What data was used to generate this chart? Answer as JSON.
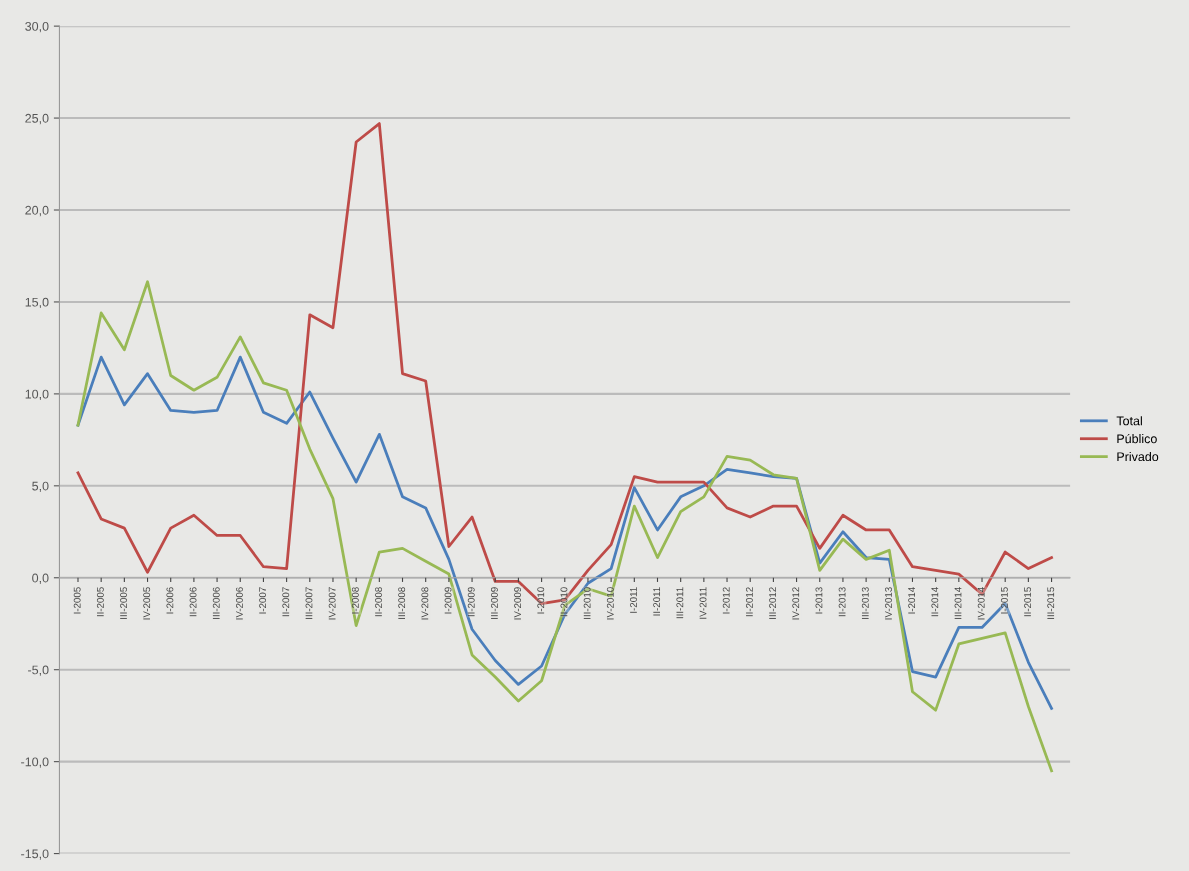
{
  "chart_data": {
    "type": "line",
    "categories": [
      "I-2005",
      "II-2005",
      "III-2005",
      "IV-2005",
      "I-2006",
      "II-2006",
      "III-2006",
      "IV-2006",
      "I-2007",
      "II-2007",
      "III-2007",
      "IV-2007",
      "I-2008",
      "II-2008",
      "III-2008",
      "IV-2008",
      "I-2009",
      "II-2009",
      "III-2009",
      "IV-2009",
      "I-2010",
      "II-2010",
      "III-2010",
      "IV-2010",
      "I-2011",
      "II-2011",
      "III-2011",
      "IV-2011",
      "I-2012",
      "II-2012",
      "III-2012",
      "IV-2012",
      "I-2013",
      "II-2013",
      "III-2013",
      "IV-2013",
      "I-2014",
      "II-2014",
      "III-2014",
      "IV-2014",
      "I-2015",
      "II-2015",
      "III-2015"
    ],
    "series": [
      {
        "name": "Total",
        "color": "#4a7ebb",
        "values": [
          8.3,
          12.0,
          9.4,
          11.1,
          9.1,
          9.0,
          9.1,
          12.0,
          9.0,
          8.4,
          10.1,
          7.6,
          5.2,
          7.8,
          4.4,
          3.8,
          1.0,
          -2.8,
          -4.5,
          -5.8,
          -4.8,
          -2.0,
          -0.3,
          0.5,
          4.9,
          2.6,
          4.4,
          5.0,
          5.9,
          5.7,
          5.5,
          5.4,
          0.8,
          2.5,
          1.1,
          1.0,
          -5.1,
          -5.4,
          -2.7,
          -2.7,
          -1.4,
          -4.6,
          -7.1
        ]
      },
      {
        "name": "Público",
        "color": "#be4b48",
        "values": [
          5.7,
          3.2,
          2.7,
          0.3,
          2.7,
          3.4,
          2.3,
          2.3,
          0.6,
          0.5,
          14.3,
          13.6,
          23.7,
          24.7,
          11.1,
          10.7,
          1.7,
          3.3,
          -0.2,
          -0.2,
          -1.4,
          -1.2,
          0.4,
          1.8,
          5.5,
          5.2,
          5.2,
          5.2,
          3.8,
          3.3,
          3.9,
          3.9,
          1.6,
          3.4,
          2.6,
          2.6,
          0.6,
          0.4,
          0.2,
          -0.9,
          1.4,
          0.5,
          1.1
        ]
      },
      {
        "name": "Privado",
        "color": "#98b954",
        "values": [
          8.3,
          14.4,
          12.4,
          16.1,
          11.0,
          10.2,
          10.9,
          13.1,
          10.6,
          10.2,
          7.0,
          4.3,
          -2.6,
          1.4,
          1.6,
          0.9,
          0.2,
          -4.2,
          -5.4,
          -6.7,
          -5.6,
          -1.5,
          -0.6,
          -1.0,
          3.9,
          1.1,
          3.6,
          4.4,
          6.6,
          6.4,
          5.6,
          5.4,
          0.4,
          2.1,
          1.0,
          1.5,
          -6.2,
          -7.2,
          -3.6,
          -3.3,
          -3.0,
          -7.0,
          -10.5
        ]
      }
    ],
    "ylim": [
      -15,
      30
    ],
    "yticks": [
      {
        "value": -15,
        "label": "-15,0"
      },
      {
        "value": -10,
        "label": "-10,0"
      },
      {
        "value": -5,
        "label": "-5,0"
      },
      {
        "value": 0,
        "label": "0,0"
      },
      {
        "value": 5,
        "label": "5,0"
      },
      {
        "value": 10,
        "label": "10,0"
      },
      {
        "value": 15,
        "label": "15,0"
      },
      {
        "value": 20,
        "label": "20,0"
      },
      {
        "value": 25,
        "label": "25,0"
      },
      {
        "value": 30,
        "label": "30,0"
      }
    ],
    "grid": "y",
    "legend": "right",
    "marker": "none",
    "line_style": "solid"
  }
}
